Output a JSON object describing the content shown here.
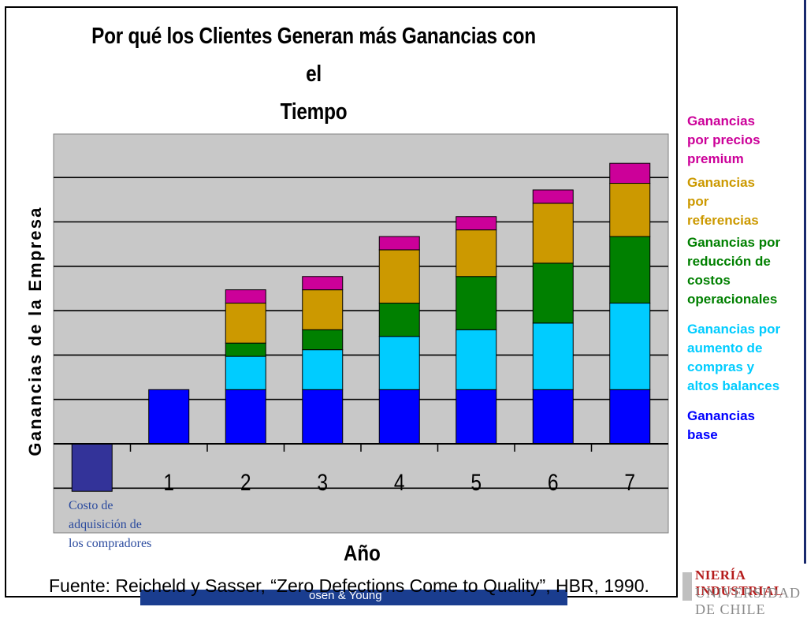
{
  "chart_data": {
    "type": "bar",
    "stacked": true,
    "title_line1": "Por qué los Clientes Generan más Ganancias  con el",
    "title_line2": "Tiempo",
    "xlabel": "Año",
    "ylabel": "Ganancias de la Empresa",
    "categories": [
      "",
      "1",
      "2",
      "3",
      "4",
      "5",
      "6",
      "7"
    ],
    "ylim": [
      -1.1,
      7.0
    ],
    "grid": true,
    "legend_position": "right",
    "series": [
      {
        "name": "Ganancias base",
        "color": "#0000ff",
        "values": [
          -1.07,
          1.22,
          1.22,
          1.22,
          1.22,
          1.22,
          1.22,
          1.22
        ]
      },
      {
        "name": "Ganancias por aumento de compras y altos balances",
        "color": "#00ccff",
        "values": [
          0,
          0,
          0.75,
          0.9,
          1.2,
          1.35,
          1.5,
          1.95
        ]
      },
      {
        "name": "Ganancias por reducción de costos operacionales",
        "color": "#008000",
        "values": [
          0,
          0,
          0.3,
          0.45,
          0.75,
          1.2,
          1.35,
          1.5
        ]
      },
      {
        "name": "Ganancias por referencias",
        "color": "#cc9900",
        "values": [
          0,
          0,
          0.9,
          0.9,
          1.2,
          1.05,
          1.35,
          1.2
        ]
      },
      {
        "name": "Ganancias por precios premium",
        "color": "#cc0099",
        "values": [
          0,
          0,
          0.3,
          0.3,
          0.3,
          0.3,
          0.3,
          0.45
        ]
      }
    ],
    "annotation": "Costo de adquisición de los compradores",
    "annotation_color": "#2a4a9e",
    "negative_bar_color": "#333399"
  },
  "legend": {
    "items": [
      {
        "label": "Ganancias por precios premium",
        "color": "#cc0099",
        "lines": [
          "Ganancias",
          "por precios",
          "premium"
        ]
      },
      {
        "label": "Ganancias por referencias",
        "color": "#cc9900",
        "lines": [
          "Ganancias",
          "por",
          "referencias"
        ]
      },
      {
        "label": "Ganancias por reducción de costos operacionales",
        "color": "#008000",
        "lines": [
          "Ganancias por",
          "reducción de",
          "costos",
          "operacionales"
        ]
      },
      {
        "label": "Ganancias por aumento de compras y altos balances",
        "color": "#00ccff",
        "lines": [
          "Ganancias por",
          "aumento de",
          "compras y",
          "altos balances"
        ]
      },
      {
        "label": "Ganancias base",
        "color": "#0000ff",
        "lines": [
          "Ganancias",
          "base"
        ]
      }
    ]
  },
  "annotation_lines": [
    "Costo de",
    "adquisición de",
    "los compradores"
  ],
  "source": "Fuente: Reicheld y Sasser, “Zero Defections Come to Quality”, HBR, 1990.",
  "footer": {
    "text": "osen & Young"
  },
  "logo": {
    "line1": "NIERÍA INDUSTRIAL",
    "line2": "UNIVERSIDAD DE CHILE"
  }
}
